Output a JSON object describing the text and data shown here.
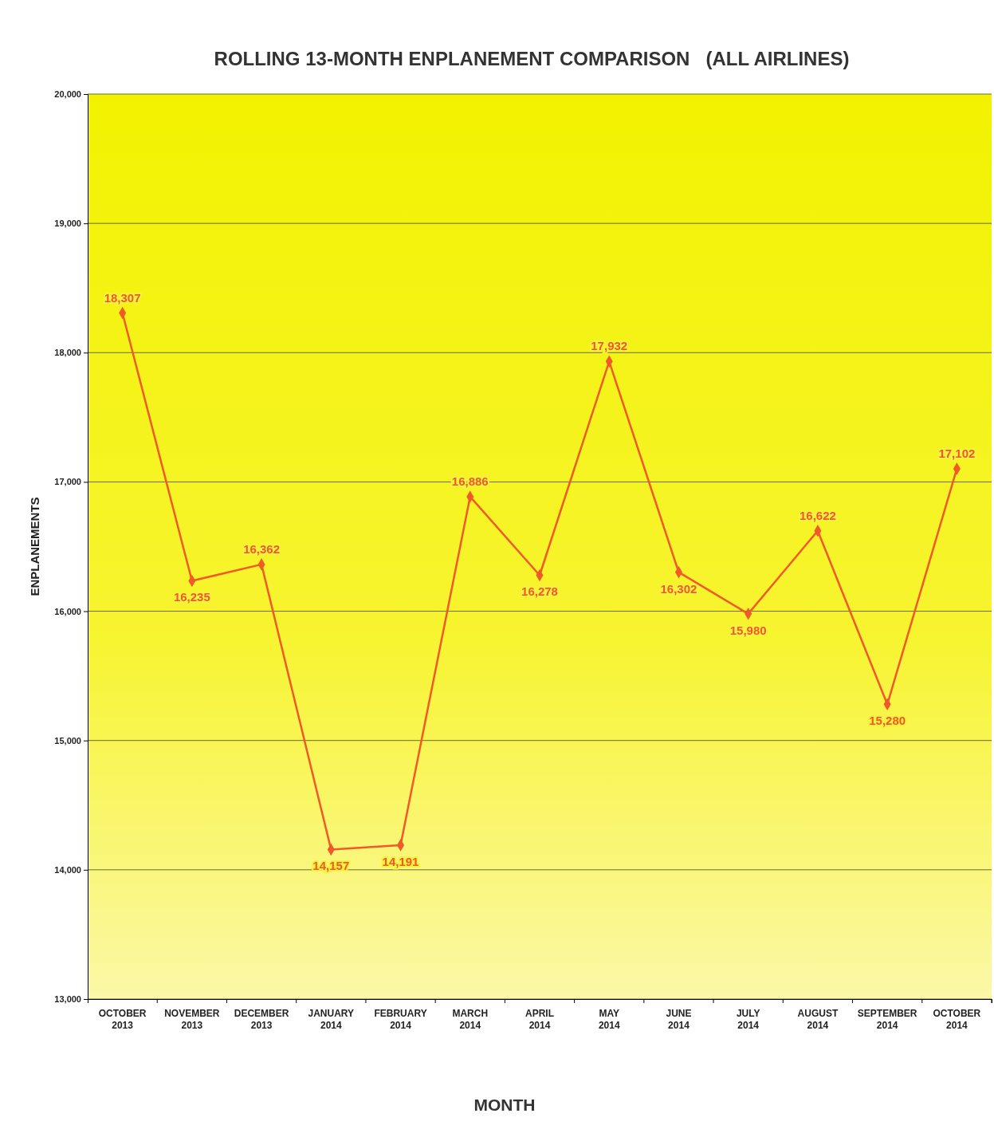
{
  "chart_data": {
    "type": "line",
    "title": "ROLLING 13-MONTH ENPLANEMENT COMPARISON   (ALL AIRLINES)",
    "xlabel": "MONTH",
    "ylabel": "ENPLANEMENTS",
    "categories": [
      "OCTOBER 2013",
      "NOVEMBER 2013",
      "DECEMBER 2013",
      "JANUARY 2014",
      "FEBRUARY 2014",
      "MARCH 2014",
      "APRIL 2014",
      "MAY 2014",
      "JUNE 2014",
      "JULY 2014",
      "AUGUST 2014",
      "SEPTEMBER 2014",
      "OCTOBER 2014"
    ],
    "series": [
      {
        "color": "#f05a28",
        "values": [
          18307,
          16235,
          16362,
          14157,
          14191,
          16886,
          16278,
          17932,
          16302,
          15980,
          16622,
          15280,
          17102
        ],
        "value_labels": [
          "18,307",
          "16,235",
          "16,362",
          "14,157",
          "14,191",
          "16,886",
          "16,278",
          "17,932",
          "16,302",
          "15,980",
          "16,622",
          "15,280",
          "17,102"
        ]
      }
    ],
    "ylim": [
      13000,
      20000
    ],
    "yticks": [
      {
        "value": 13000,
        "label": "13,000"
      },
      {
        "value": 14000,
        "label": "14,000"
      },
      {
        "value": 15000,
        "label": "15,000"
      },
      {
        "value": 16000,
        "label": "16,000"
      },
      {
        "value": 17000,
        "label": "17,000"
      },
      {
        "value": 18000,
        "label": "18,000"
      },
      {
        "value": 19000,
        "label": "19,000"
      },
      {
        "value": 20000,
        "label": "20,000"
      }
    ],
    "grid": "y",
    "marker": "diamond",
    "line_style": "solid"
  }
}
